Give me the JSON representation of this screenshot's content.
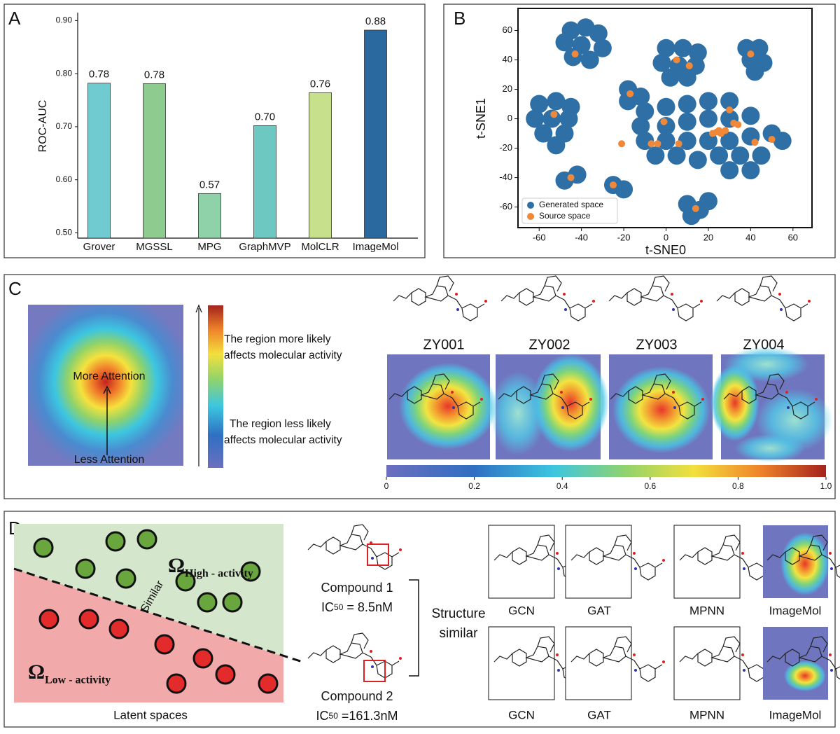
{
  "panels": [
    "A",
    "B",
    "C",
    "D"
  ],
  "chart_data": [
    {
      "type": "bar",
      "ylabel": "ROC-AUC",
      "categories": [
        "Grover",
        "MGSSL",
        "MPG",
        "GraphMVP",
        "MolCLR",
        "ImageMol"
      ],
      "values": [
        0.782,
        0.781,
        0.574,
        0.702,
        0.764,
        0.882
      ],
      "value_labels": [
        "0.78",
        "0.78",
        "0.57",
        "0.70",
        "0.76",
        "0.88"
      ],
      "colors": [
        "#6fcbd0",
        "#8dcb8e",
        "#8fd2aa",
        "#6ec8c2",
        "#c7e08c",
        "#2a68a0"
      ],
      "ylim": [
        0.49,
        0.915
      ],
      "yticks": [
        {
          "value": 0.5,
          "label": "0.50"
        },
        {
          "value": 0.6,
          "label": "0.60"
        },
        {
          "value": 0.7,
          "label": "0.70"
        },
        {
          "value": 0.8,
          "label": "0.80"
        },
        {
          "value": 0.9,
          "label": "0.90"
        }
      ]
    },
    {
      "type": "scatter",
      "xlabel": "t-SNE0",
      "ylabel": "t-SNE1",
      "legend": "lower left",
      "xlim": [
        -70,
        69
      ],
      "ylim": [
        -74,
        75
      ],
      "xticks": [
        -60,
        -40,
        -20,
        0,
        20,
        40,
        60
      ],
      "yticks": [
        -60,
        -40,
        -20,
        0,
        20,
        40,
        60
      ],
      "series": [
        {
          "name": "Generated space",
          "color": "#2e6fa5",
          "x": [
            -45,
            -38,
            -32,
            -48,
            -40,
            -30,
            -44,
            -36,
            0,
            8,
            15,
            -2,
            6,
            14,
            2,
            10,
            38,
            44,
            40,
            46,
            42,
            -60,
            -52,
            -45,
            -62,
            -54,
            -46,
            -58,
            -48,
            -52,
            -18,
            -12,
            -18,
            -10,
            0,
            10,
            20,
            30,
            -12,
            0,
            10,
            20,
            30,
            40,
            -10,
            0,
            10,
            20,
            30,
            40,
            50,
            55,
            -5,
            5,
            15,
            25,
            35,
            45,
            30,
            40,
            -48,
            -42,
            -25,
            -20,
            10,
            16,
            20,
            12
          ],
          "y": [
            60,
            62,
            58,
            52,
            50,
            48,
            42,
            40,
            48,
            48,
            45,
            38,
            36,
            36,
            28,
            28,
            48,
            48,
            40,
            38,
            32,
            10,
            12,
            8,
            0,
            0,
            0,
            -10,
            -10,
            -18,
            20,
            15,
            12,
            5,
            8,
            10,
            12,
            12,
            -5,
            -5,
            -2,
            0,
            0,
            2,
            -15,
            -15,
            -15,
            -15,
            -15,
            -12,
            -10,
            -15,
            -25,
            -25,
            -28,
            -25,
            -25,
            -25,
            -35,
            -35,
            -42,
            -38,
            -45,
            -48,
            -58,
            -62,
            -56,
            -66
          ]
        },
        {
          "name": "Source space",
          "color": "#f0883a",
          "x": [
            -43,
            5,
            11,
            40,
            -17,
            -53,
            -1,
            30,
            32,
            24,
            28,
            26,
            22,
            34,
            -4,
            -7,
            -21,
            42,
            50,
            6,
            -45,
            -25,
            14,
            25
          ],
          "y": [
            44,
            40,
            36,
            44,
            17,
            3,
            -2,
            6,
            -3,
            -9,
            -8,
            -10,
            -10,
            -4,
            -17,
            -17,
            -17,
            -16,
            -14,
            -17,
            -40,
            -45,
            -61,
            -8
          ]
        }
      ]
    }
  ],
  "attention": {
    "more": "More Attention",
    "less": "Less Attention",
    "more_desc": [
      "The region more likely",
      "affects molecular activity"
    ],
    "less_desc": [
      "The region less likely",
      "affects molecular activity"
    ],
    "compounds": [
      "ZY001",
      "ZY002",
      "ZY003",
      "ZY004"
    ],
    "colorbar_ticks": [
      0,
      0.2,
      0.4,
      0.6,
      0.8,
      {
        "value": 1,
        "label": "1.0"
      }
    ]
  },
  "latent": {
    "omega": "Ω",
    "high": "High - activity",
    "low": "Low - activity",
    "similar": "Similar",
    "caption": "Latent spaces"
  },
  "compounds": [
    {
      "name": "Compound 1",
      "ic": "IC",
      "sub": "50",
      "value": " = 8.5nM"
    },
    {
      "name": "Compound 2",
      "ic": "IC",
      "sub": "50",
      "value": " =161.3nM"
    }
  ],
  "structure": [
    "Structure",
    "similar"
  ],
  "methods": [
    "GCN",
    "GAT",
    "MPNN",
    "ImageMol"
  ]
}
